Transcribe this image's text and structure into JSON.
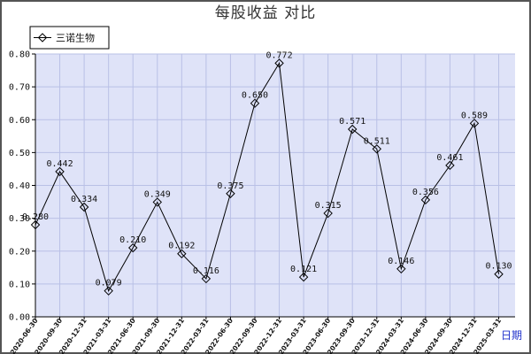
{
  "chart_data": {
    "type": "line",
    "title": "每股收益  对比",
    "xlabel": "日期",
    "ylabel": "",
    "ylim": [
      0.0,
      0.8
    ],
    "yticks": [
      "0.00",
      "0.10",
      "0.20",
      "0.30",
      "0.40",
      "0.50",
      "0.60",
      "0.70",
      "0.80"
    ],
    "grid": true,
    "legend_position": "top-left",
    "categories": [
      "2020-06-30",
      "2020-09-30",
      "2020-12-31",
      "2021-03-31",
      "2021-06-30",
      "2021-09-30",
      "2021-12-31",
      "2022-03-31",
      "2022-06-30",
      "2022-09-30",
      "2022-12-31",
      "2023-03-31",
      "2023-06-30",
      "2023-09-30",
      "2023-12-31",
      "2024-03-31",
      "2024-06-30",
      "2024-09-30",
      "2024-12-31",
      "2025-03-31"
    ],
    "series": [
      {
        "name": "三诺生物",
        "color": "#000000",
        "values": [
          0.28,
          0.442,
          0.334,
          0.079,
          0.21,
          0.349,
          0.192,
          0.116,
          0.375,
          0.65,
          0.772,
          0.121,
          0.315,
          0.571,
          0.511,
          0.146,
          0.356,
          0.461,
          0.589,
          0.13
        ],
        "labels": [
          "0.280",
          "0.442",
          "0.334",
          "0.079",
          "0.210",
          "0.349",
          "0.192",
          "0.116",
          "0.375",
          "0.650",
          "0.772",
          "0.121",
          "0.315",
          "0.571",
          "0.511",
          "0.146",
          "0.356",
          "0.461",
          "0.589",
          "0.130"
        ]
      }
    ],
    "colors": {
      "plot_bg": "#dfe3f8",
      "grid": "#b9c0e6",
      "axis": "#000000",
      "xaxis_word": "#2233cc"
    }
  }
}
